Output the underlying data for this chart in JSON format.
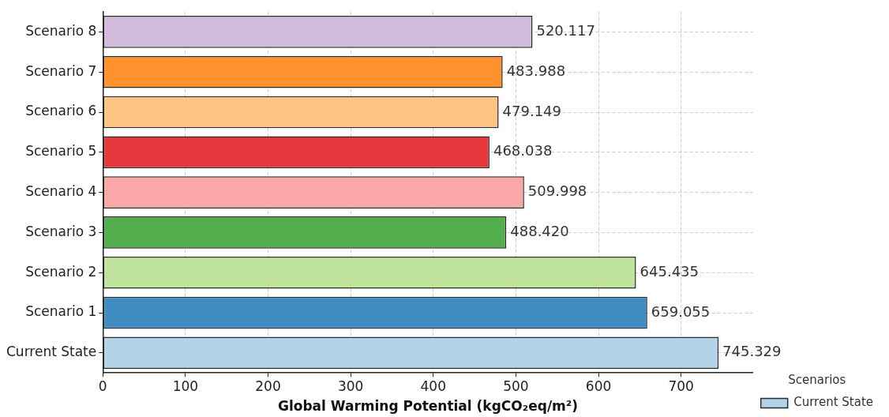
{
  "chart_data": {
    "type": "bar",
    "orientation": "horizontal",
    "categories": [
      "Scenario 8",
      "Scenario 7",
      "Scenario 6",
      "Scenario 5",
      "Scenario 4",
      "Scenario 3",
      "Scenario 2",
      "Scenario 1",
      "Current State"
    ],
    "series": [
      {
        "name": "Current State",
        "color": "#b3d4e8",
        "values": [
          null,
          null,
          null,
          null,
          null,
          null,
          null,
          null,
          745.329
        ],
        "value_labels": [
          null,
          null,
          null,
          null,
          null,
          null,
          null,
          null,
          "745.329"
        ]
      },
      {
        "colors": [
          "#d3bbdd",
          "#ff922c",
          "#fdc584",
          "#e7393d",
          "#faa7a7",
          "#52ad4c",
          "#bfe39b",
          "#408bc0",
          null
        ],
        "values": [
          520.117,
          483.988,
          479.149,
          468.038,
          509.998,
          488.42,
          645.435,
          659.055,
          null
        ],
        "value_labels": [
          "520.117",
          "483.988",
          "479.149",
          "468.038",
          "509.998",
          "488.420",
          "645.435",
          "659.055",
          null
        ]
      }
    ],
    "xlabel": "Global Warming Potential (kgCO₂eq/m²)",
    "xlim": [
      0,
      787
    ],
    "xticks": [
      0,
      100,
      200,
      300,
      400,
      500,
      600,
      700
    ],
    "grid": true,
    "legend": "bottom right",
    "legend_title": "Scenarios"
  }
}
